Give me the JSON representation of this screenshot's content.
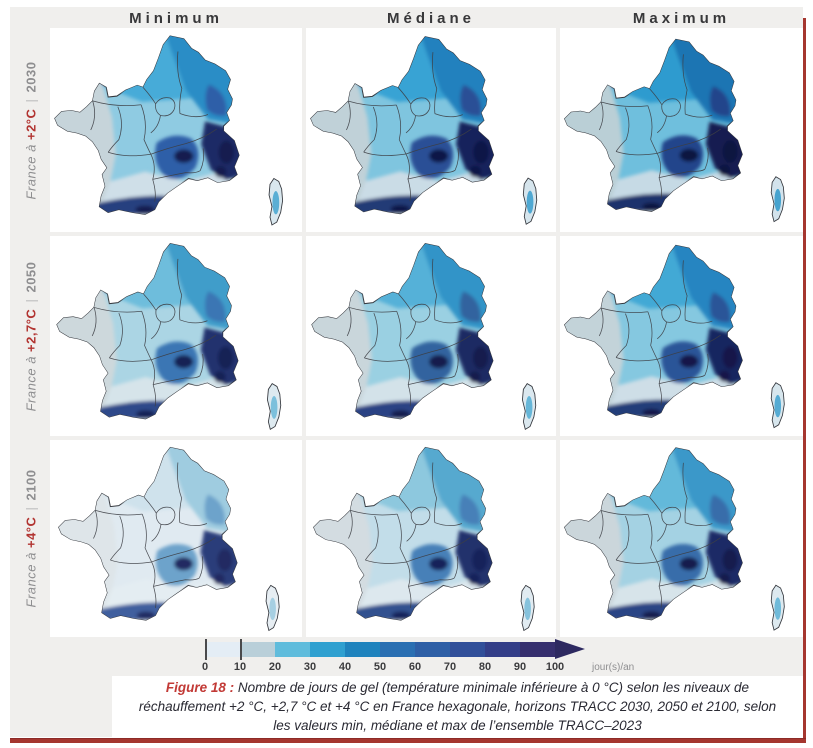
{
  "figure": {
    "columns": [
      "Minimum",
      "Médiane",
      "Maximum"
    ],
    "rows": [
      {
        "prefix": "France à",
        "temp": "+2°C",
        "separator": "|",
        "year": "2030"
      },
      {
        "prefix": "France à",
        "temp": "+2,7°C",
        "separator": "|",
        "year": "2050"
      },
      {
        "prefix": "France à",
        "temp": "+4°C",
        "separator": "|",
        "year": "2100"
      }
    ]
  },
  "panels": [
    {
      "row": "2030",
      "column": "Minimum",
      "colors": {
        "base": "#8fcbe2",
        "west": "#c6d4da",
        "north": "#46abd8",
        "northeast": "#2b8dc6",
        "south": "#cfdfe8",
        "center": "#2f5ea8",
        "alps": "#1b2a66",
        "pyrenees": "#27417f",
        "spots": "#141c50",
        "corsica": "#d9e7ee",
        "corsicaSpot": "#5aaed4"
      }
    },
    {
      "row": "2030",
      "column": "Médiane",
      "colors": {
        "base": "#7fc5df",
        "west": "#c0d1d8",
        "north": "#38a3d4",
        "northeast": "#2281be",
        "south": "#cadce6",
        "center": "#294f96",
        "alps": "#17225c",
        "pyrenees": "#223a76",
        "spots": "#111846",
        "corsica": "#d6e5ed",
        "corsicaSpot": "#4fa8d2"
      }
    },
    {
      "row": "2030",
      "column": "Maximum",
      "colors": {
        "base": "#6fbfdd",
        "west": "#bacfd6",
        "north": "#2e9bcf",
        "northeast": "#1a74b3",
        "south": "#c6dae5",
        "center": "#24448b",
        "alps": "#131b51",
        "pyrenees": "#1e326c",
        "spots": "#0e1440",
        "corsica": "#d3e3ec",
        "corsicaSpot": "#46a3cf"
      }
    },
    {
      "row": "2050",
      "column": "Minimum",
      "colors": {
        "base": "#abd5e4",
        "west": "#cdd8dc",
        "north": "#6ebddc",
        "northeast": "#409dca",
        "south": "#d6e4ea",
        "center": "#3a76b4",
        "alps": "#20306e",
        "pyrenees": "#2d4a8a",
        "spots": "#182254",
        "corsica": "#deeaf0",
        "corsicaSpot": "#7cc0dc"
      }
    },
    {
      "row": "2050",
      "column": "Médiane",
      "colors": {
        "base": "#9ad0e2",
        "west": "#c9d6db",
        "north": "#54b1d8",
        "northeast": "#3194c8",
        "south": "#d3e2e9",
        "center": "#33649f",
        "alps": "#1c2a64",
        "pyrenees": "#294284",
        "spots": "#151e4e",
        "corsica": "#dbe8ef",
        "corsicaSpot": "#66b6d8"
      }
    },
    {
      "row": "2050",
      "column": "Maximum",
      "colors": {
        "base": "#85c8e0",
        "west": "#c3d3d9",
        "north": "#42a9d5",
        "northeast": "#2685c1",
        "south": "#cedee7",
        "center": "#2c5598",
        "alps": "#182560",
        "pyrenees": "#243c79",
        "spots": "#12184a",
        "corsica": "#d7e6ed",
        "corsicaSpot": "#55abd3"
      }
    },
    {
      "row": "2100",
      "column": "Minimum",
      "colors": {
        "base": "#e0eaf1",
        "west": "#dee5e9",
        "north": "#cfe2ec",
        "northeast": "#9fcce0",
        "south": "#e4edf2",
        "center": "#6da3cb",
        "alps": "#2b3d7a",
        "pyrenees": "#3f5e9e",
        "spots": "#202c62",
        "corsica": "#e7eef3",
        "corsicaSpot": "#a6cfe2"
      }
    },
    {
      "row": "2100",
      "column": "Médiane",
      "colors": {
        "base": "#c2dde9",
        "west": "#d3dce1",
        "north": "#8dc8de",
        "northeast": "#56a9cf",
        "south": "#dde8ee",
        "center": "#4680b8",
        "alps": "#22306c",
        "pyrenees": "#31518f",
        "spots": "#19235a",
        "corsica": "#e1ebf1",
        "corsicaSpot": "#86c2dc"
      }
    },
    {
      "row": "2100",
      "column": "Maximum",
      "colors": {
        "base": "#a4d2e3",
        "west": "#cbd6db",
        "north": "#64b9da",
        "northeast": "#3b98c9",
        "south": "#d7e4ea",
        "center": "#386daa",
        "alps": "#1d2b66",
        "pyrenees": "#2a4585",
        "spots": "#141c4e",
        "corsica": "#dde9ef",
        "corsicaSpot": "#6fbad9"
      }
    }
  ],
  "colorbar": {
    "tick_labels": [
      "0",
      "10",
      "20",
      "30",
      "40",
      "50",
      "60",
      "70",
      "80",
      "90",
      "100"
    ],
    "unit": "jour(s)/an",
    "segment_colors": [
      "#e4edf5",
      "#b9cfd9",
      "#5fbcdc",
      "#2fa0d0",
      "#1f83bd",
      "#2a6fb2",
      "#2e5fa6",
      "#314f99",
      "#333e88",
      "#362f6e"
    ],
    "arrow_color": "#2d2960"
  },
  "caption": {
    "label": "Figure 18 :",
    "text": " Nombre de jours de gel (température minimale inférieure à 0 °C) selon les niveaux de réchauffement +2 °C, +2,7 °C et +4 °C en France hexagonale, horizons TRACC 2030, 2050 et 2100, selon les valeurs min, médiane et max de l’ensemble TRACC–2023",
    "accent_color": "#c23a36"
  },
  "frame_color": "#a5362f",
  "background_color": "#f0efed"
}
